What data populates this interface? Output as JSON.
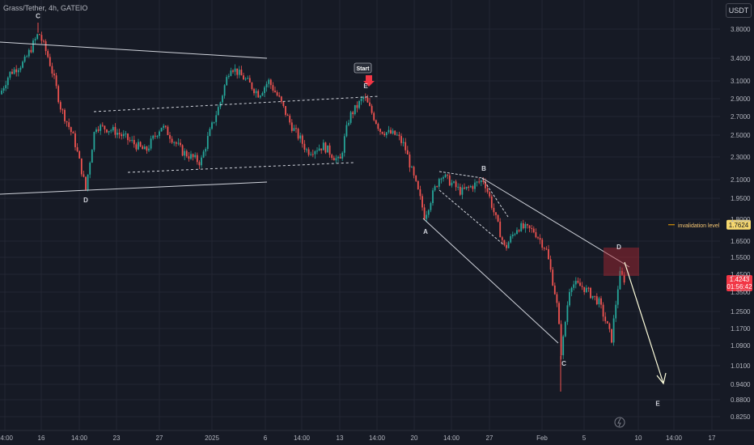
{
  "symbol": "Grass/Tether, 4h, GATEIO",
  "currency": "USDT",
  "chart_data": {
    "type": "candlestick",
    "symbol": "Grass/Tether",
    "timeframe": "4h",
    "exchange": "GATEIO",
    "y_ticks": [
      "3.8000",
      "3.4000",
      "3.1000",
      "2.9000",
      "2.7000",
      "2.5000",
      "2.3000",
      "2.1000",
      "1.9500",
      "1.8000",
      "1.6500",
      "1.5500",
      "1.4500",
      "1.3500",
      "1.2500",
      "1.1700",
      "1.0900",
      "1.0100",
      "0.9400",
      "0.8800",
      "0.8250"
    ],
    "x_ticks": [
      "14:00",
      "16",
      "14:00",
      "23",
      "27",
      "2025",
      "6",
      "14:00",
      "13",
      "14:00",
      "20",
      "14:00",
      "27",
      "Feb",
      "5",
      "10",
      "14:00",
      "17"
    ],
    "price_path": [
      [
        0,
        2.95,
        "2.95"
      ],
      [
        12,
        3.2,
        ""
      ],
      [
        30,
        3.35,
        ""
      ],
      [
        48,
        3.75,
        ""
      ],
      [
        60,
        3.4,
        ""
      ],
      [
        75,
        2.8,
        ""
      ],
      [
        92,
        2.45,
        ""
      ],
      [
        106,
        2.02,
        ""
      ],
      [
        118,
        2.6,
        ""
      ],
      [
        140,
        2.55,
        ""
      ],
      [
        160,
        2.45,
        ""
      ],
      [
        180,
        2.35,
        ""
      ],
      [
        200,
        2.6,
        ""
      ],
      [
        225,
        2.35,
        ""
      ],
      [
        248,
        2.25,
        ""
      ],
      [
        262,
        2.6,
        ""
      ],
      [
        272,
        2.85,
        ""
      ],
      [
        285,
        3.3,
        ""
      ],
      [
        300,
        3.15,
        ""
      ],
      [
        320,
        2.95,
        ""
      ],
      [
        332,
        3.1,
        ""
      ],
      [
        345,
        2.9,
        ""
      ],
      [
        360,
        2.6,
        ""
      ],
      [
        380,
        2.35,
        ""
      ],
      [
        400,
        2.4,
        ""
      ],
      [
        420,
        2.25,
        ""
      ],
      [
        432,
        2.7,
        ""
      ],
      [
        450,
        2.92,
        ""
      ],
      [
        470,
        2.55,
        ""
      ],
      [
        490,
        2.5,
        ""
      ],
      [
        500,
        2.4,
        ""
      ],
      [
        510,
        2.15,
        ""
      ],
      [
        525,
        1.82,
        ""
      ],
      [
        545,
        2.15,
        ""
      ],
      [
        570,
        2.0,
        ""
      ],
      [
        598,
        2.1,
        ""
      ],
      [
        612,
        1.82,
        ""
      ],
      [
        624,
        1.6,
        ""
      ],
      [
        640,
        1.75,
        ""
      ],
      [
        660,
        1.72,
        ""
      ],
      [
        675,
        1.6,
        ""
      ],
      [
        688,
        1.3,
        ""
      ],
      [
        694,
        1.05,
        ""
      ],
      [
        705,
        1.4,
        ""
      ],
      [
        720,
        1.38,
        ""
      ],
      [
        740,
        1.3,
        ""
      ],
      [
        756,
        1.12,
        ""
      ],
      [
        766,
        1.45,
        ""
      ],
      [
        772,
        1.42,
        ""
      ]
    ],
    "wave_labels": [
      {
        "label": "C",
        "x": "16",
        "price": 3.95
      },
      {
        "label": "D",
        "x": "14:00",
        "price": 1.92
      },
      {
        "label": "E",
        "x": "14:00",
        "price": 3.02
      },
      {
        "label": "A",
        "x": "20",
        "price": 1.7
      },
      {
        "label": "B",
        "x": "27",
        "price": 2.18
      },
      {
        "label": "C",
        "x": "Feb",
        "price": 1.01
      },
      {
        "label": "D",
        "x": "5",
        "price": 1.6
      },
      {
        "label": "E",
        "x": "14:00",
        "price": 0.86
      }
    ],
    "annotations": {
      "start_label": "Start",
      "invalidation_label": "invalidation level",
      "invalidation_price": "1.7624",
      "current_price": "1.4243",
      "countdown": "01:56:42"
    },
    "colors": {
      "up": "#26a69a",
      "down": "#ef5350",
      "background": "#161a25",
      "grid": "#232632",
      "line": "#d1d4dc",
      "invalidation": "#f7a600",
      "zone": "#b22833"
    }
  }
}
